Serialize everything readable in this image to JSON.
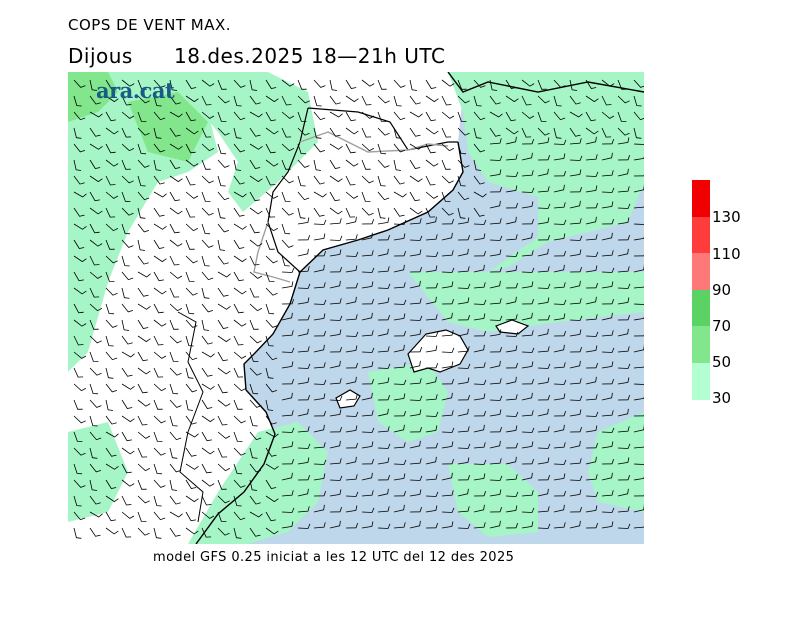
{
  "header": {
    "title": "COPS DE VENT MAX.",
    "day": "Dijous",
    "date": "18.des.2025 18—21h UTC"
  },
  "logo": {
    "text": "ara.cat"
  },
  "legend": {
    "labels": [
      "30",
      "50",
      "70",
      "90",
      "110",
      "130"
    ],
    "colors": [
      "#b4ffd2",
      "#82e68c",
      "#5ad264",
      "#ff7878",
      "#ff3c3c",
      "#f00000"
    ]
  },
  "map": {
    "land_color": "#ffffff",
    "sea_color": "#bed7eb",
    "coast_color": "#000000",
    "border_color": "#a0a0a0",
    "barb_color": "#000000"
  },
  "footer": {
    "text": "model GFS 0.25 iniciat a les 12 UTC del 12 des 2025"
  }
}
